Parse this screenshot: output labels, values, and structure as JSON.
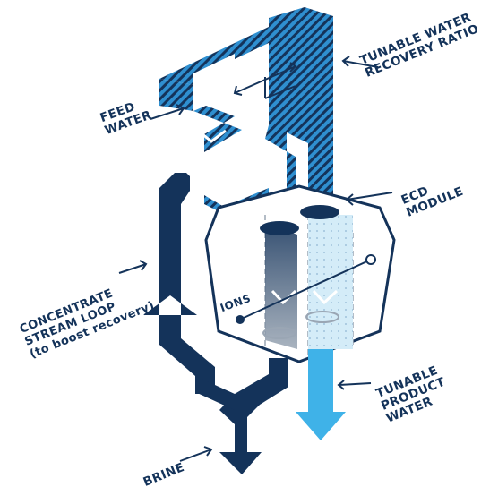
{
  "labels": {
    "feed_water": "FEED\nWATER",
    "tunable_ratio": "TUNABLE WATER\nRECOVERY RATIO",
    "ecd_module": "ECD\nMODULE",
    "concentrate_loop": "CONCENTRATE\nSTREAM LOOP\n(to boost recovery)",
    "ions": "IONS",
    "tunable_product": "TUNABLE\nPRODUCT\nWATER",
    "brine": "BRINE"
  },
  "colors": {
    "navy": "#14335a",
    "feed_blue": "#2f8fd0",
    "product_blue": "#3fb2e8",
    "grey": "#9aa6b4"
  }
}
